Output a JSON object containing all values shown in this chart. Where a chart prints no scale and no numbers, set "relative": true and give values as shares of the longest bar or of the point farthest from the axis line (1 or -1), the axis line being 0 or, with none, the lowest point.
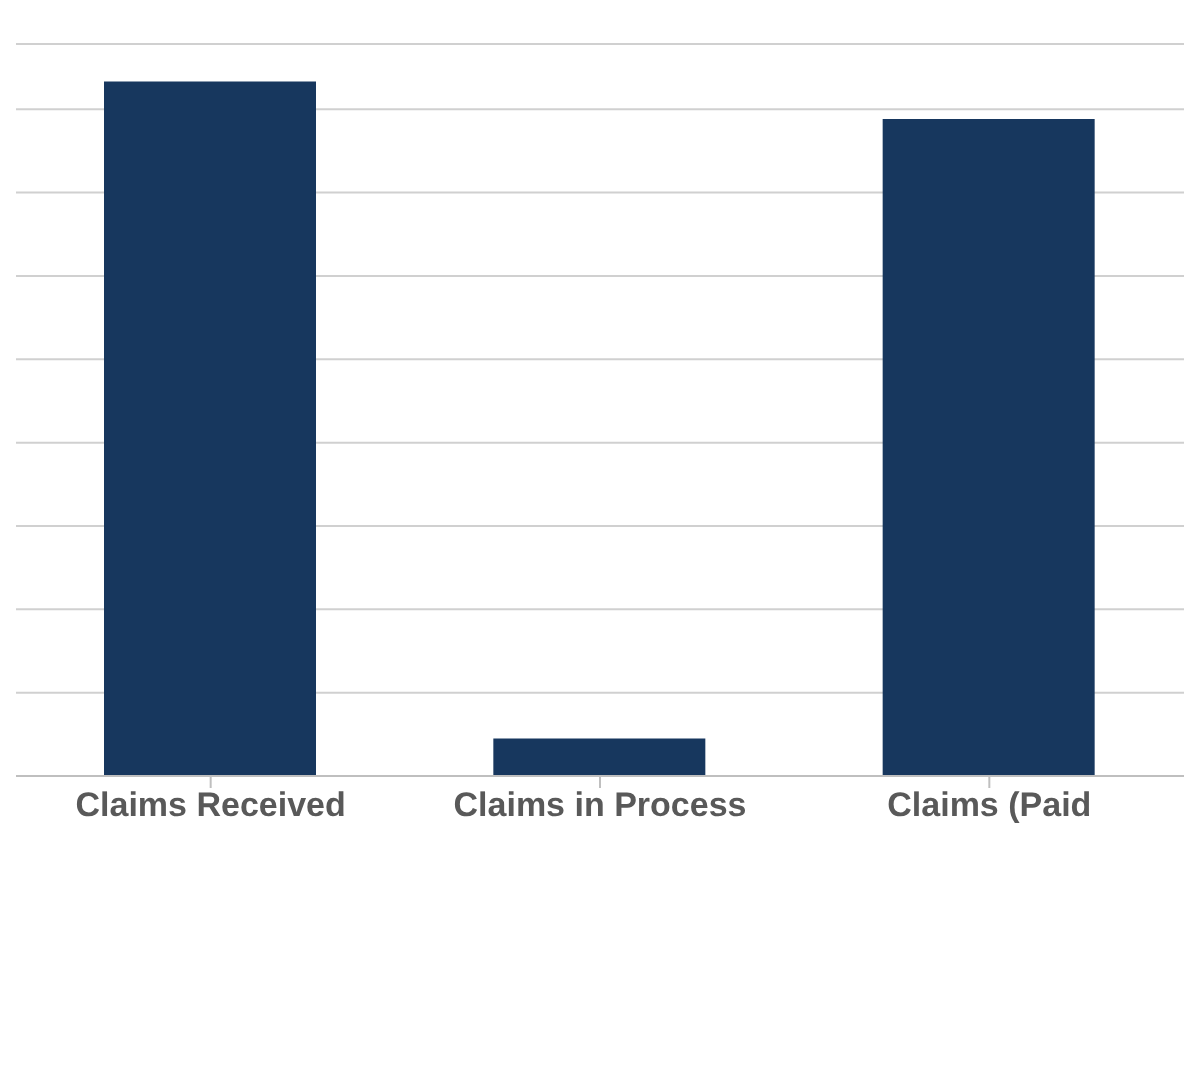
{
  "chart_data": {
    "type": "bar",
    "relative": true,
    "categories": [
      "Claims Received",
      "Claims in Process",
      "Claims (Paid"
    ],
    "values": [
      1,
      0.054,
      0.946
    ],
    "color": "#17375e",
    "grid": "y"
  }
}
